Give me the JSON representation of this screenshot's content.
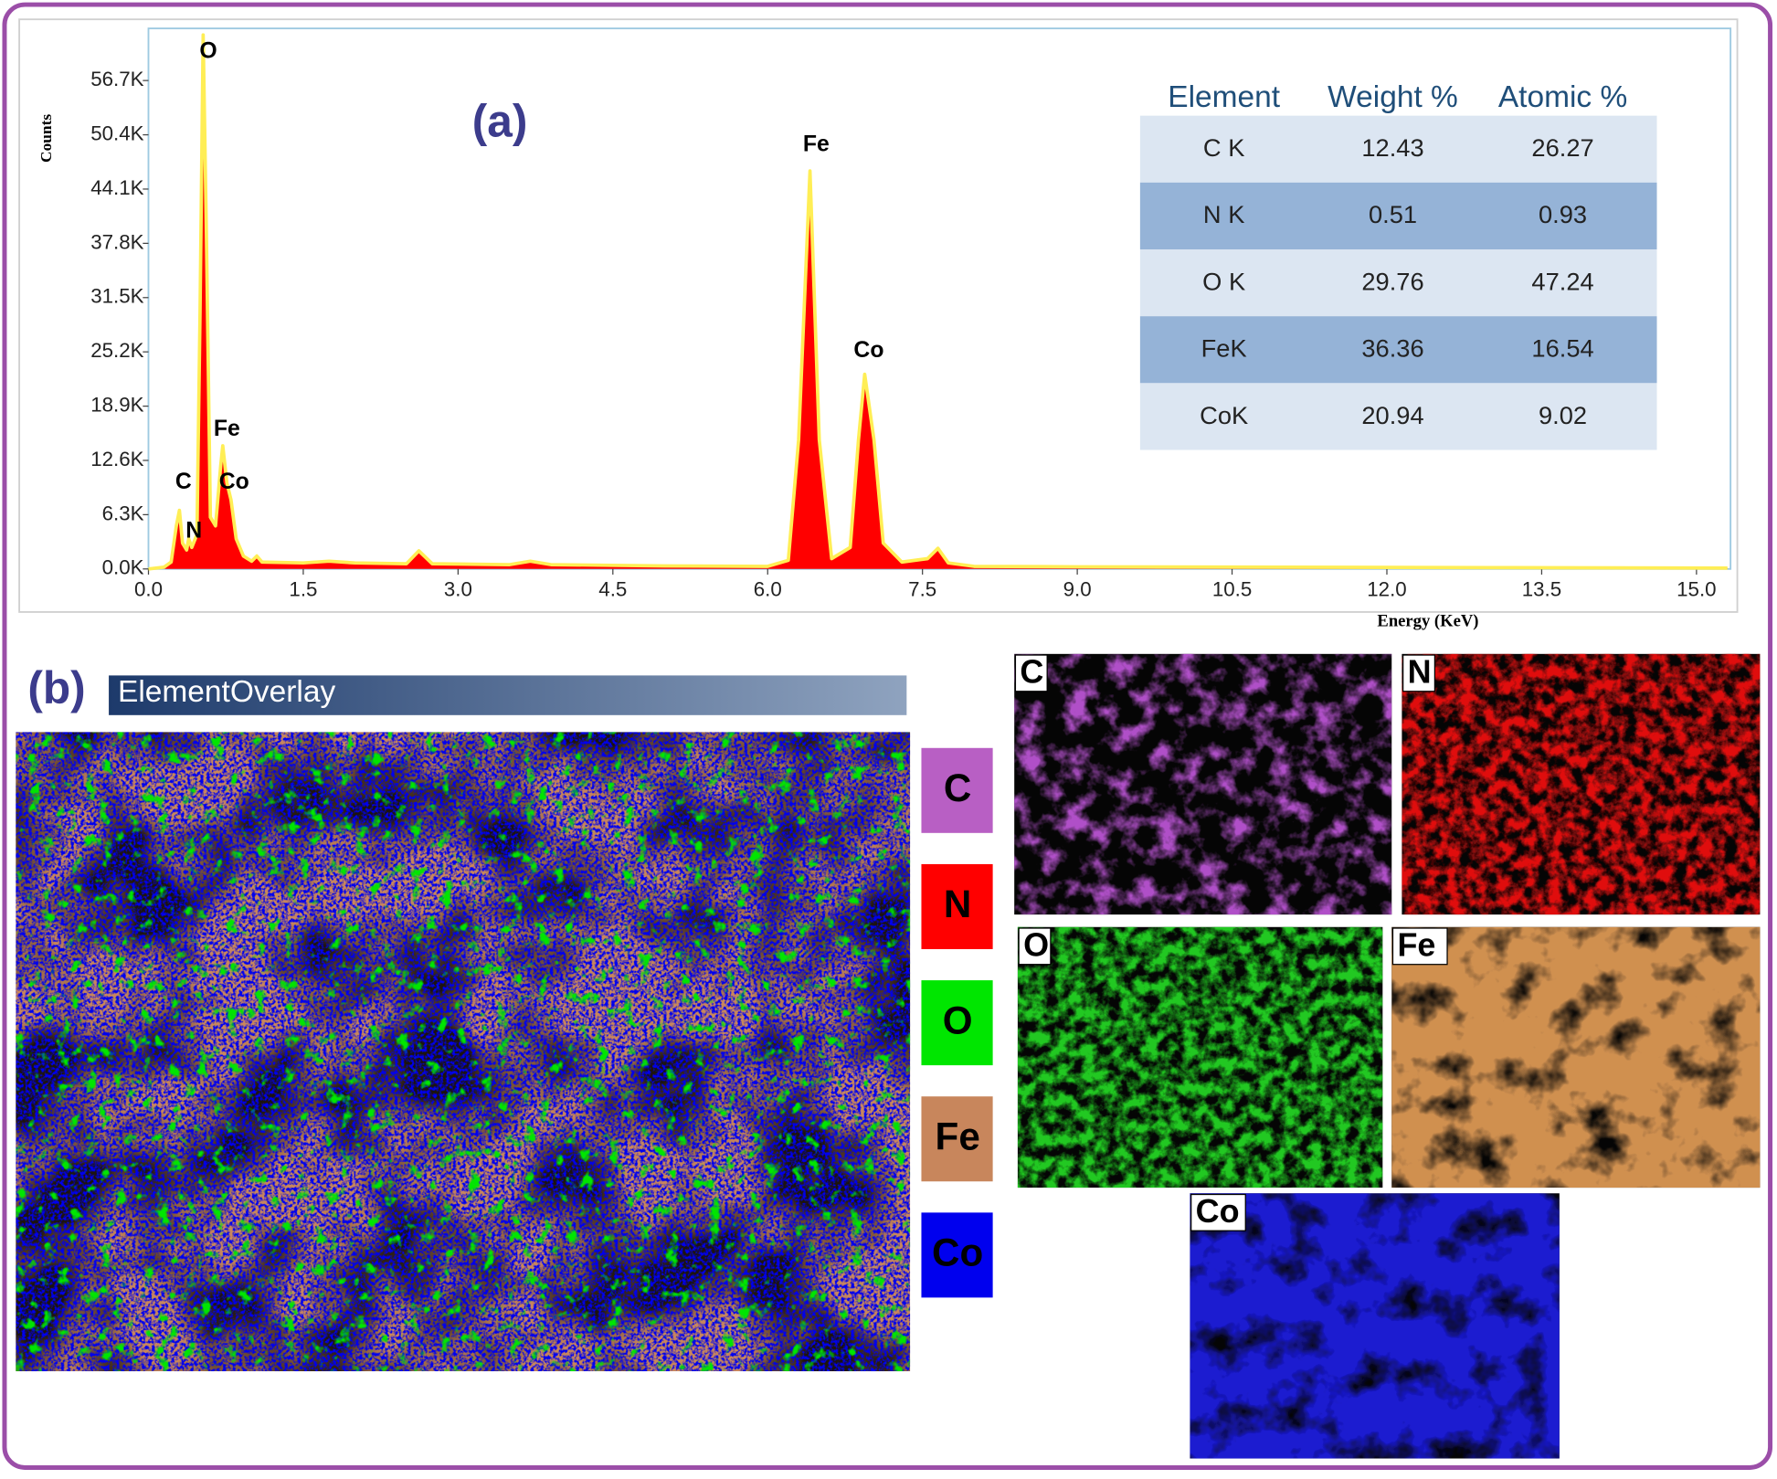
{
  "chart_data": {
    "type": "area",
    "title": "(a)",
    "y_label": "Counts",
    "x_label": "Energy (KeV)",
    "x": [
      0.0,
      0.15,
      0.22,
      0.27,
      0.3,
      0.33,
      0.37,
      0.39,
      0.42,
      0.47,
      0.5,
      0.53,
      0.56,
      0.6,
      0.65,
      0.7,
      0.72,
      0.76,
      0.8,
      0.85,
      0.92,
      1.0,
      1.05,
      1.1,
      1.5,
      1.75,
      2.0,
      2.5,
      2.62,
      2.75,
      3.5,
      3.7,
      3.9,
      5.0,
      6.0,
      6.2,
      6.3,
      6.41,
      6.5,
      6.62,
      6.8,
      6.88,
      6.94,
      7.03,
      7.12,
      7.3,
      7.55,
      7.65,
      7.75,
      8.0,
      9.0,
      11.0,
      13.0,
      15.3
    ],
    "values": [
      0,
      200,
      800,
      5000,
      6800,
      3000,
      2200,
      3500,
      2500,
      4000,
      30000,
      62000,
      40000,
      6000,
      5000,
      12000,
      14300,
      10000,
      8000,
      3500,
      1500,
      900,
      1500,
      800,
      700,
      900,
      700,
      600,
      2100,
      600,
      500,
      900,
      500,
      350,
      300,
      1000,
      15000,
      46200,
      15000,
      1200,
      2500,
      15000,
      22600,
      15000,
      3000,
      800,
      1200,
      2400,
      700,
      300,
      250,
      200,
      150,
      100
    ],
    "color": "#ff0000",
    "edge_color": "#ffee55",
    "xlim": [
      0,
      15.33
    ],
    "ylim": [
      0,
      62750
    ],
    "xticks": [
      {
        "value": 0,
        "label": "0.0"
      },
      1.5,
      {
        "value": 3,
        "label": "3.0"
      },
      4.5,
      {
        "value": 6,
        "label": "6.0"
      },
      7.5,
      {
        "value": 9,
        "label": "9.0"
      },
      10.5,
      {
        "value": 12,
        "label": "12.0"
      },
      13.5,
      {
        "value": 15,
        "label": "15.0"
      }
    ],
    "yticks": [
      {
        "value": 0,
        "label": "0.0K"
      },
      {
        "value": 6300,
        "label": "6.3K"
      },
      {
        "value": 12600,
        "label": "12.6K"
      },
      {
        "value": 18900,
        "label": "18.9K"
      },
      {
        "value": 25200,
        "label": "25.2K"
      },
      {
        "value": 31500,
        "label": "31.5K"
      },
      {
        "value": 37800,
        "label": "37.8K"
      },
      {
        "value": 44100,
        "label": "44.1K"
      },
      {
        "value": 50400,
        "label": "50.4K"
      },
      {
        "value": 56700,
        "label": "56.7K"
      }
    ],
    "annotations": [
      {
        "text": "O",
        "x": 0.58,
        "y": 59990
      },
      {
        "text": "Fe",
        "x": 6.47,
        "y": 49200
      },
      {
        "text": "Co",
        "x": 6.98,
        "y": 25260
      },
      {
        "text": "Fe",
        "x": 0.76,
        "y": 16180
      },
      {
        "text": "Co",
        "x": 0.83,
        "y": 10000
      },
      {
        "text": "C",
        "x": 0.34,
        "y": 10000
      },
      {
        "text": "N",
        "x": 0.44,
        "y": 4340
      }
    ]
  },
  "table": {
    "header": [
      "Element",
      "Weight %",
      "Atomic %"
    ],
    "rows": [
      [
        "C K",
        12.43,
        26.27
      ],
      [
        "N K",
        0.51,
        0.93
      ],
      [
        "O K",
        29.76,
        47.24
      ],
      [
        "FeK",
        36.36,
        16.54
      ],
      [
        "CoK",
        20.94,
        9.02
      ]
    ]
  },
  "overlay": {
    "label": "(b)",
    "title": "ElementOverlay",
    "legend": [
      {
        "name": "C",
        "color": "#b85fc4"
      },
      {
        "name": "N",
        "color": "#ff0000"
      },
      {
        "name": "O",
        "color": "#00e600"
      },
      {
        "name": "Fe",
        "color": "#c8865c"
      },
      {
        "name": "Co",
        "color": "#0000ee"
      }
    ]
  },
  "maps": [
    {
      "label": "C",
      "color": "#b050c8"
    },
    {
      "label": "N",
      "color": "#e01010"
    },
    {
      "label": "O",
      "color": "#20c820"
    },
    {
      "label": "Fe",
      "color": "#d09050"
    },
    {
      "label": "Co",
      "color": "#1a1ad0"
    }
  ]
}
